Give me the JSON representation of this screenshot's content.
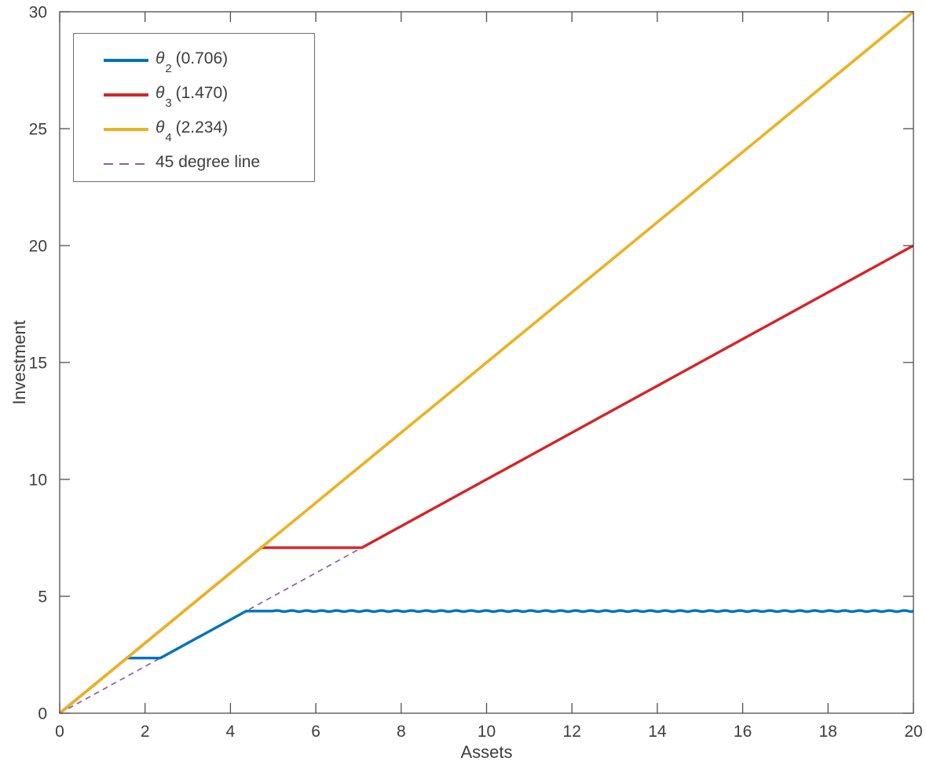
{
  "figure": {
    "background": "#ffffff",
    "axis_color": "#4e4e4e",
    "text_color": "#3d3d3d"
  },
  "chart_data": {
    "type": "line",
    "title": "",
    "xlabel": "Assets",
    "ylabel": "Investment",
    "xlim": [
      0,
      20
    ],
    "ylim": [
      0,
      30
    ],
    "xticks": [
      0,
      2,
      4,
      6,
      8,
      10,
      12,
      14,
      16,
      18,
      20
    ],
    "yticks": [
      0,
      5,
      10,
      15,
      20,
      25,
      30
    ],
    "grid": false,
    "box": true,
    "tick_direction": "in",
    "tick_length": 13,
    "legend_position": "top-left",
    "draw_order": [
      3,
      0,
      1,
      2
    ],
    "series": [
      {
        "name": "θ2 (0.706)",
        "label_base": "θ",
        "label_sub": "2",
        "label_rest": " (0.706)",
        "color": "#0072BD",
        "style": "solid",
        "width": 3.4,
        "points": [
          [
            0,
            0
          ],
          [
            1.573,
            2.36
          ],
          [
            2.36,
            2.36
          ],
          [
            4.37,
            4.37
          ],
          [
            20,
            4.37
          ]
        ],
        "ripple": {
          "from_x": 5,
          "amplitude": 0.025,
          "wavelength": 0.35
        }
      },
      {
        "name": "θ3 (1.470)",
        "label_base": "θ",
        "label_sub": "3",
        "label_rest": " (1.470)",
        "color": "#D42528",
        "style": "solid",
        "width": 3.4,
        "points": [
          [
            0,
            0
          ],
          [
            4.72,
            7.08
          ],
          [
            7.08,
            7.08
          ],
          [
            20,
            20
          ]
        ]
      },
      {
        "name": "θ4 (2.234)",
        "label_base": "θ",
        "label_sub": "4",
        "label_rest": " (2.234)",
        "color": "#EDB120",
        "style": "solid",
        "width": 3.6,
        "points": [
          [
            0,
            0
          ],
          [
            20,
            30
          ]
        ]
      },
      {
        "name": "45 degree line",
        "label_base": "45 degree line",
        "label_sub": "",
        "label_rest": "",
        "color": "#875FA5",
        "style": "dashed",
        "width": 1.7,
        "dash_pattern": [
          7,
          5.5
        ],
        "points": [
          [
            0,
            0
          ],
          [
            20,
            20
          ]
        ]
      }
    ]
  }
}
